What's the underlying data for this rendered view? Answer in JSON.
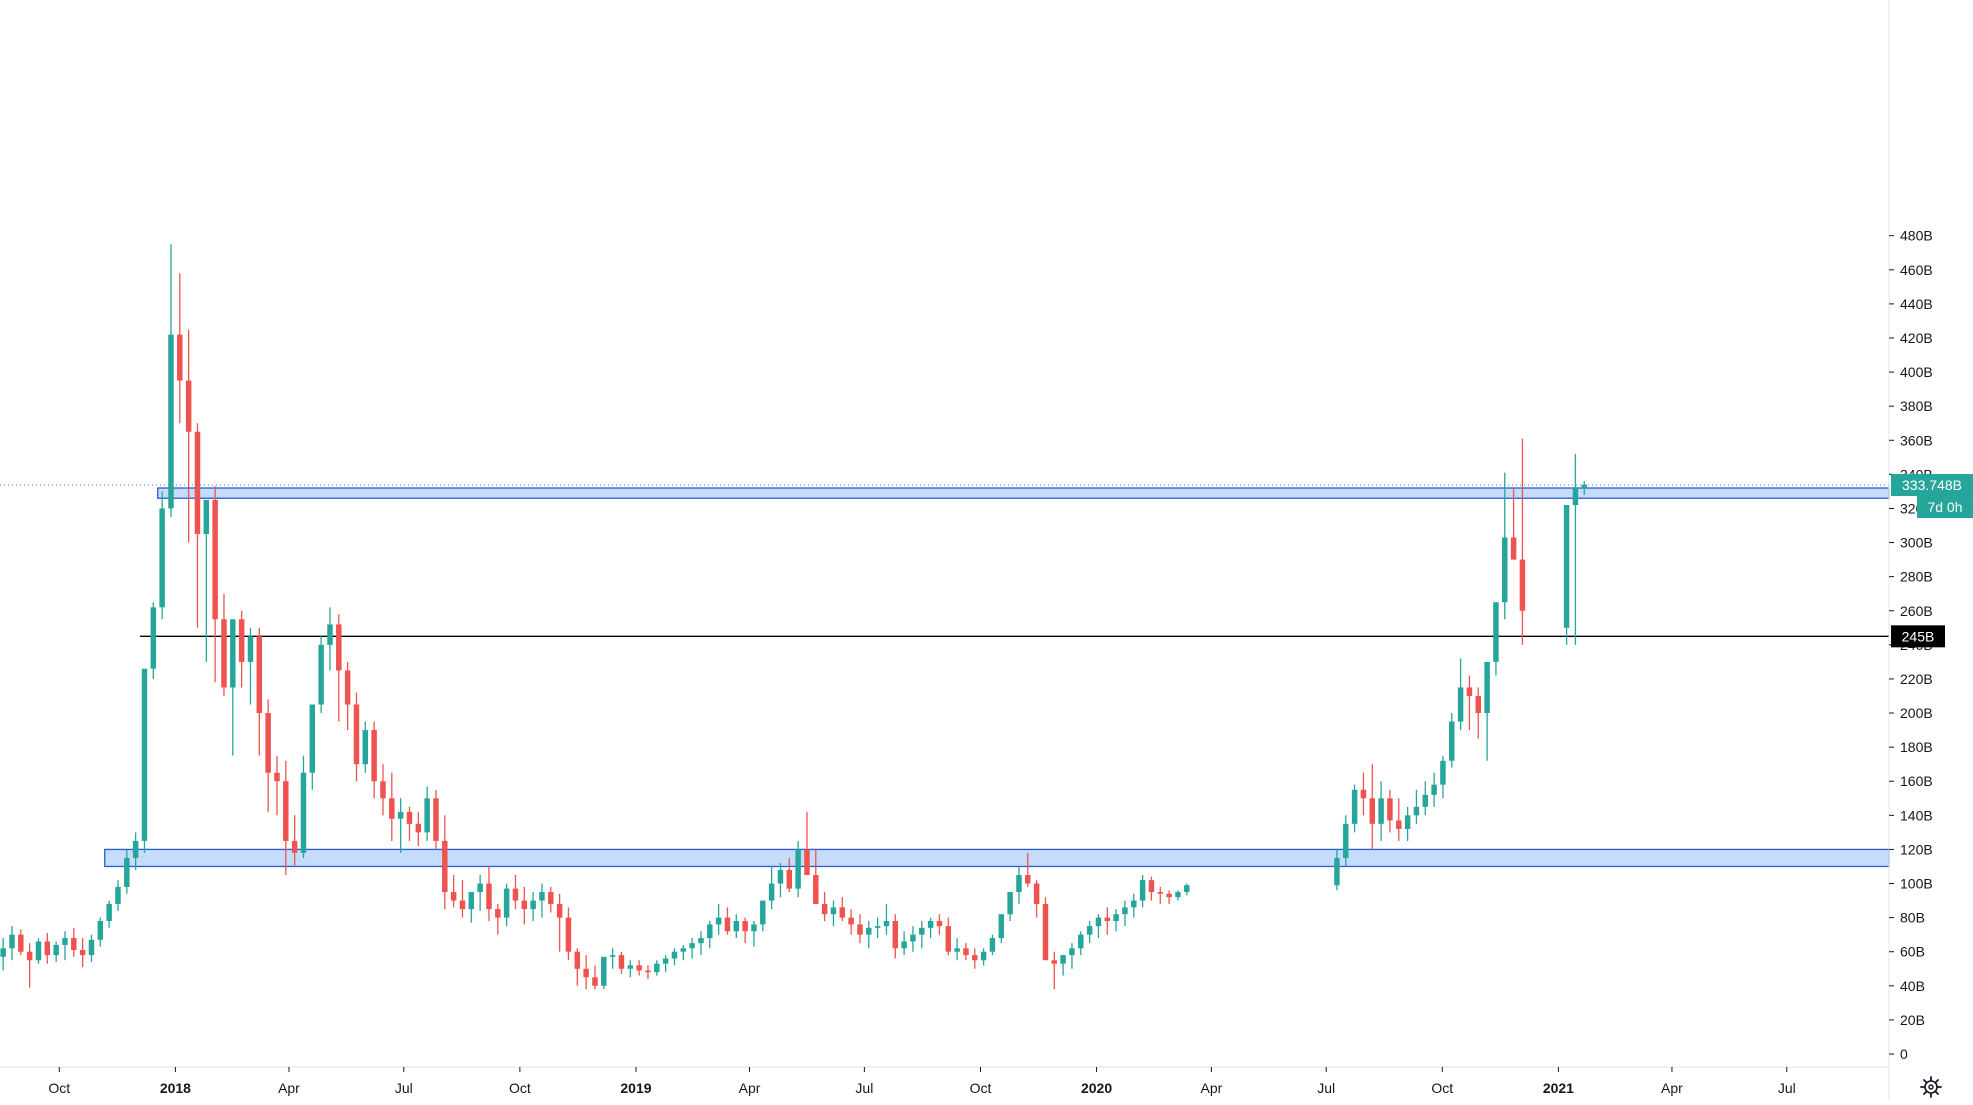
{
  "chart_data": {
    "type": "candlestick",
    "title": "",
    "interval": "weekly",
    "y_axis": {
      "side": "right",
      "unit": "B",
      "min": 0,
      "max": 480,
      "step": 20,
      "tick_labels": [
        "0",
        "20B",
        "40B",
        "60B",
        "80B",
        "100B",
        "120B",
        "140B",
        "160B",
        "180B",
        "200B",
        "220B",
        "240B",
        "260B",
        "280B",
        "300B",
        "320B",
        "340B",
        "360B",
        "380B",
        "400B",
        "420B",
        "440B",
        "460B",
        "480B"
      ]
    },
    "x_axis": {
      "start": "2017-08-15",
      "end": "2021-09-20",
      "ticks": [
        {
          "date": "2017-10-01",
          "label": "Oct",
          "bold": false
        },
        {
          "date": "2018-01-01",
          "label": "2018",
          "bold": true
        },
        {
          "date": "2018-04-01",
          "label": "Apr",
          "bold": false
        },
        {
          "date": "2018-07-01",
          "label": "Jul",
          "bold": false
        },
        {
          "date": "2018-10-01",
          "label": "Oct",
          "bold": false
        },
        {
          "date": "2019-01-01",
          "label": "2019",
          "bold": true
        },
        {
          "date": "2019-04-01",
          "label": "Apr",
          "bold": false
        },
        {
          "date": "2019-07-01",
          "label": "Jul",
          "bold": false
        },
        {
          "date": "2019-10-01",
          "label": "Oct",
          "bold": false
        },
        {
          "date": "2020-01-01",
          "label": "2020",
          "bold": true
        },
        {
          "date": "2020-04-01",
          "label": "Apr",
          "bold": false
        },
        {
          "date": "2020-07-01",
          "label": "Jul",
          "bold": false
        },
        {
          "date": "2020-10-01",
          "label": "Oct",
          "bold": false
        },
        {
          "date": "2021-01-01",
          "label": "2021",
          "bold": true
        },
        {
          "date": "2021-04-01",
          "label": "Apr",
          "bold": false
        },
        {
          "date": "2021-07-01",
          "label": "Jul",
          "bold": false
        }
      ]
    },
    "grid": false,
    "colors": {
      "up": "#26a69a",
      "down": "#ef5350",
      "up_ghost": "#c8dfb4",
      "zone_fill": "#bcd6fb",
      "zone_border": "#2a5ccf",
      "price_badge": "#26a69a",
      "level_badge": "#000000"
    },
    "zones": [
      {
        "from": 326,
        "to": 332,
        "start": "2017-12-18",
        "end": "right-edge"
      },
      {
        "from": 110,
        "to": 120,
        "start": "2017-11-06",
        "end": "right-edge"
      }
    ],
    "lines": [
      {
        "value": 245,
        "start": "2017-12-04",
        "label": "245B"
      }
    ],
    "last_price": {
      "value": 333.748,
      "label": "333.748B",
      "countdown": "7d 0h"
    },
    "candle_starts": [
      "2017-08-14",
      "2020-07-06",
      "2021-01-04"
    ],
    "candles": [
      [
        [
          57,
          68,
          49,
          62
        ],
        [
          62,
          75,
          55,
          70
        ],
        [
          70,
          73,
          58,
          60
        ],
        [
          60,
          65,
          39,
          55
        ],
        [
          55,
          68,
          53,
          66
        ],
        [
          66,
          71,
          53,
          58
        ],
        [
          58,
          66,
          54,
          64
        ],
        [
          64,
          72,
          55,
          68
        ],
        [
          68,
          74,
          57,
          61
        ],
        [
          61,
          68,
          51,
          58
        ],
        [
          58,
          70,
          54,
          67
        ],
        [
          67,
          80,
          63,
          78
        ],
        [
          78,
          90,
          74,
          88
        ],
        [
          88,
          102,
          84,
          98
        ],
        [
          98,
          120,
          94,
          115
        ],
        [
          115,
          130,
          108,
          125
        ],
        [
          125,
          140,
          118,
          226
        ],
        [
          226,
          265,
          220,
          262
        ],
        [
          262,
          330,
          255,
          320
        ],
        [
          320,
          475,
          315,
          422
        ],
        [
          422,
          458,
          370,
          395
        ],
        [
          395,
          425,
          300,
          365
        ],
        [
          365,
          370,
          250,
          305
        ],
        [
          305,
          320,
          230,
          325
        ],
        [
          325,
          333,
          218,
          255
        ],
        [
          255,
          270,
          210,
          215
        ],
        [
          215,
          255,
          175,
          255
        ],
        [
          255,
          260,
          215,
          230
        ],
        [
          230,
          250,
          205,
          245
        ],
        [
          245,
          250,
          175,
          200
        ],
        [
          200,
          208,
          142,
          165
        ],
        [
          165,
          175,
          140,
          160
        ],
        [
          160,
          172,
          105,
          125
        ],
        [
          125,
          140,
          110,
          118
        ],
        [
          118,
          175,
          115,
          165
        ],
        [
          165,
          198,
          155,
          205
        ],
        [
          205,
          245,
          200,
          240
        ],
        [
          240,
          262,
          225,
          252
        ],
        [
          252,
          258,
          195,
          225
        ],
        [
          225,
          230,
          190,
          205
        ],
        [
          205,
          212,
          160,
          170
        ],
        [
          170,
          195,
          165,
          190
        ],
        [
          190,
          195,
          150,
          160
        ],
        [
          160,
          170,
          140,
          150
        ],
        [
          150,
          165,
          125,
          138
        ],
        [
          138,
          150,
          118,
          142
        ],
        [
          142,
          145,
          125,
          135
        ],
        [
          135,
          142,
          122,
          130
        ],
        [
          130,
          157,
          125,
          150
        ],
        [
          150,
          155,
          120,
          125
        ],
        [
          125,
          140,
          85,
          95
        ],
        [
          95,
          105,
          86,
          90
        ],
        [
          90,
          102,
          80,
          85
        ],
        [
          85,
          90,
          77,
          95
        ],
        [
          95,
          105,
          84,
          100
        ],
        [
          100,
          110,
          78,
          85
        ],
        [
          85,
          88,
          70,
          80
        ],
        [
          80,
          100,
          75,
          97
        ],
        [
          97,
          105,
          85,
          90
        ],
        [
          90,
          98,
          76,
          85
        ],
        [
          85,
          95,
          78,
          90
        ],
        [
          90,
          100,
          80,
          95
        ],
        [
          95,
          98,
          83,
          88
        ],
        [
          88,
          94,
          60,
          80
        ],
        [
          80,
          86,
          55,
          60
        ],
        [
          60,
          62,
          40,
          50
        ],
        [
          50,
          58,
          38,
          45
        ],
        [
          45,
          52,
          38,
          40
        ],
        [
          40,
          55,
          38,
          57
        ],
        [
          57,
          62,
          50,
          58
        ],
        [
          58,
          60,
          47,
          50
        ],
        [
          50,
          55,
          45,
          52
        ],
        [
          52,
          55,
          46,
          49
        ],
        [
          49,
          52,
          44,
          48
        ],
        [
          48,
          55,
          46,
          53
        ],
        [
          53,
          58,
          48,
          56
        ],
        [
          56,
          62,
          52,
          60
        ],
        [
          60,
          64,
          55,
          62
        ],
        [
          62,
          68,
          56,
          65
        ],
        [
          65,
          72,
          58,
          68
        ],
        [
          68,
          78,
          62,
          76
        ],
        [
          76,
          88,
          70,
          80
        ],
        [
          80,
          86,
          70,
          72
        ],
        [
          72,
          82,
          68,
          78
        ],
        [
          78,
          80,
          65,
          72
        ],
        [
          72,
          78,
          63,
          76
        ],
        [
          76,
          88,
          72,
          90
        ],
        [
          90,
          110,
          85,
          100
        ],
        [
          100,
          112,
          92,
          108
        ],
        [
          108,
          115,
          95,
          97
        ],
        [
          97,
          125,
          92,
          120
        ],
        [
          120,
          142,
          105,
          105
        ],
        [
          105,
          120,
          90,
          88
        ],
        [
          88,
          95,
          78,
          82
        ],
        [
          82,
          90,
          75,
          86
        ],
        [
          86,
          92,
          78,
          80
        ],
        [
          80,
          85,
          70,
          76
        ],
        [
          76,
          82,
          65,
          70
        ],
        [
          70,
          78,
          62,
          74
        ],
        [
          74,
          80,
          68,
          75
        ],
        [
          75,
          88,
          70,
          78
        ],
        [
          78,
          82,
          56,
          62
        ],
        [
          62,
          72,
          58,
          66
        ],
        [
          66,
          75,
          60,
          70
        ],
        [
          70,
          78,
          62,
          74
        ],
        [
          74,
          80,
          68,
          78
        ],
        [
          78,
          82,
          70,
          75
        ],
        [
          75,
          80,
          58,
          60
        ],
        [
          60,
          68,
          55,
          62
        ],
        [
          62,
          65,
          55,
          58
        ],
        [
          58,
          62,
          50,
          55
        ],
        [
          55,
          62,
          52,
          60
        ],
        [
          60,
          70,
          58,
          68
        ],
        [
          68,
          80,
          65,
          82
        ],
        [
          82,
          95,
          78,
          95
        ],
        [
          95,
          110,
          88,
          105
        ],
        [
          105,
          118,
          98,
          100
        ],
        [
          100,
          102,
          80,
          88
        ],
        [
          88,
          92,
          60,
          55
        ],
        [
          55,
          60,
          38,
          53
        ],
        [
          53,
          58,
          46,
          58
        ],
        [
          58,
          65,
          50,
          62
        ],
        [
          62,
          72,
          58,
          70
        ],
        [
          70,
          78,
          65,
          75
        ],
        [
          75,
          82,
          68,
          80
        ],
        [
          80,
          86,
          70,
          78
        ],
        [
          78,
          85,
          72,
          82
        ],
        [
          82,
          90,
          75,
          86
        ],
        [
          86,
          94,
          80,
          90
        ],
        [
          90,
          105,
          86,
          102
        ],
        [
          102,
          104,
          90,
          95
        ],
        [
          95,
          98,
          88,
          94
        ],
        [
          94,
          96,
          88,
          92
        ],
        [
          92,
          96,
          90,
          95
        ],
        [
          95,
          100,
          93,
          99
        ]
      ],
      [
        [
          99,
          120,
          96,
          115
        ],
        [
          115,
          140,
          110,
          135
        ],
        [
          135,
          158,
          130,
          155
        ],
        [
          155,
          165,
          140,
          150
        ],
        [
          150,
          170,
          120,
          135
        ],
        [
          135,
          160,
          125,
          150
        ],
        [
          150,
          155,
          130,
          137
        ],
        [
          137,
          150,
          125,
          132
        ],
        [
          132,
          145,
          125,
          140
        ],
        [
          140,
          155,
          135,
          145
        ],
        [
          145,
          160,
          140,
          152
        ],
        [
          152,
          165,
          145,
          158
        ],
        [
          158,
          175,
          150,
          172
        ],
        [
          172,
          200,
          168,
          195
        ],
        [
          195,
          232,
          190,
          215
        ],
        [
          215,
          222,
          190,
          210
        ],
        [
          210,
          215,
          185,
          200
        ],
        [
          200,
          225,
          172,
          230
        ],
        [
          230,
          250,
          222,
          265
        ],
        [
          265,
          341,
          255,
          303
        ],
        [
          303,
          332,
          290,
          290
        ],
        [
          290,
          361,
          240,
          260
        ]
      ],
      [
        [
          250,
          262,
          240,
          322
        ],
        [
          322,
          352,
          240,
          332
        ],
        [
          332,
          336,
          328,
          334
        ]
      ]
    ]
  }
}
